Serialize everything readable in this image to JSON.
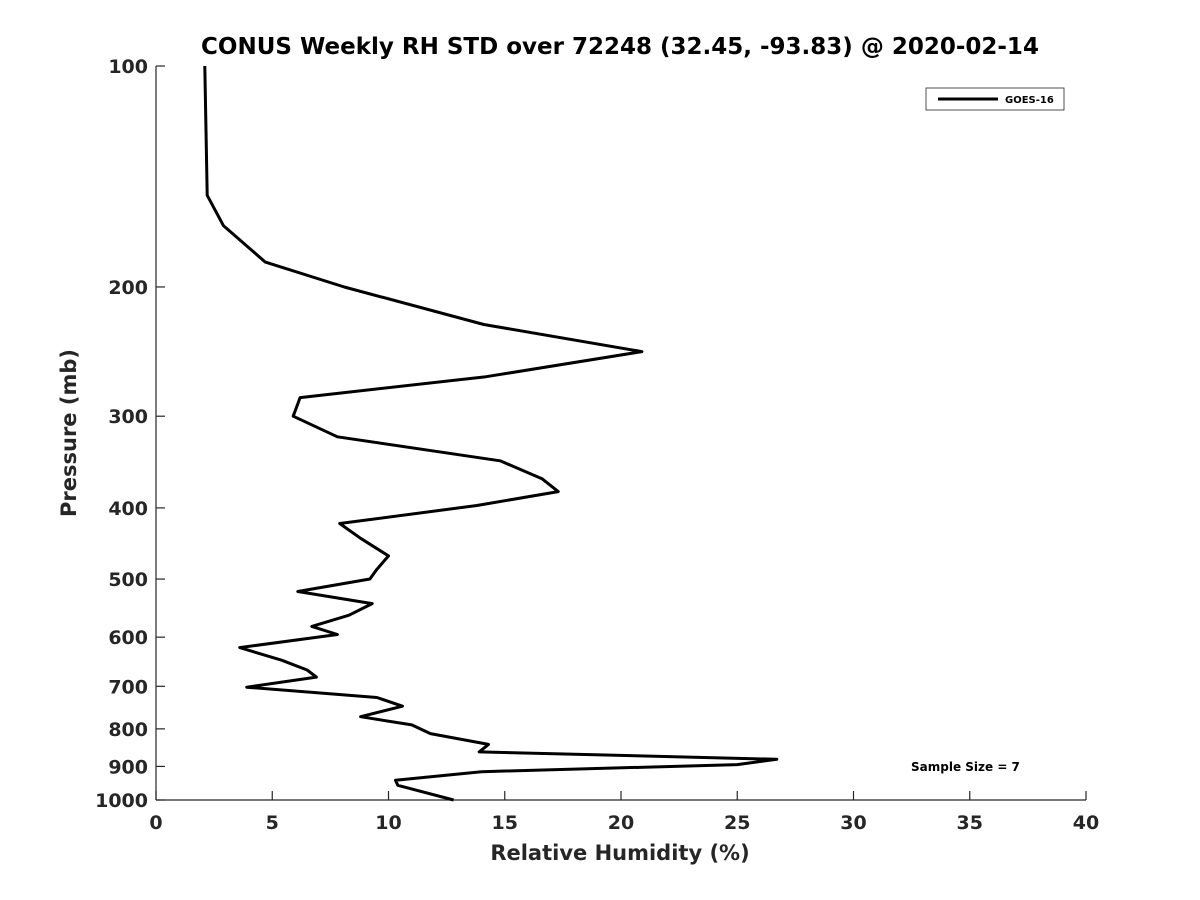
{
  "chart_data": {
    "type": "line",
    "title": "CONUS Weekly RH STD over 72248 (32.45, -93.83) @ 2020-02-14",
    "xlabel": "Relative Humidity (%)",
    "ylabel": "Pressure (mb)",
    "xlim": [
      0,
      40
    ],
    "ylim": [
      1000,
      100
    ],
    "y_scale": "log",
    "y_reversed": true,
    "grid": false,
    "legend_position": "top-right",
    "x_ticks": [
      "0",
      "5",
      "10",
      "15",
      "20",
      "25",
      "30",
      "35",
      "40"
    ],
    "y_ticks": [
      "100",
      "200",
      "300",
      "400",
      "500",
      "600",
      "700",
      "800",
      "900",
      "1000"
    ],
    "annotation": "Sample Size = 7",
    "series": [
      {
        "name": "GOES-16",
        "color": "#000000",
        "x": [
          2.1,
          2.2,
          2.9,
          4.7,
          8.1,
          14.1,
          20.9,
          14.2,
          6.2,
          5.9,
          7.8,
          14.8,
          16.6,
          17.3,
          13.8,
          7.9,
          8.8,
          10.0,
          9.5,
          9.2,
          6.1,
          9.3,
          8.3,
          6.7,
          7.8,
          3.6,
          5.4,
          6.5,
          6.9,
          3.9,
          9.5,
          10.6,
          8.8,
          11.0,
          11.8,
          14.3,
          13.9,
          26.7,
          25.0,
          14.0,
          10.3,
          10.4,
          12.8
        ],
        "y": [
          100,
          150,
          165,
          185,
          200,
          225,
          245,
          265,
          283,
          300,
          320,
          345,
          365,
          380,
          397,
          420,
          440,
          465,
          485,
          500,
          520,
          540,
          560,
          580,
          595,
          620,
          645,
          665,
          680,
          702,
          725,
          745,
          770,
          790,
          812,
          840,
          860,
          880,
          895,
          915,
          940,
          955,
          1000
        ]
      }
    ]
  }
}
